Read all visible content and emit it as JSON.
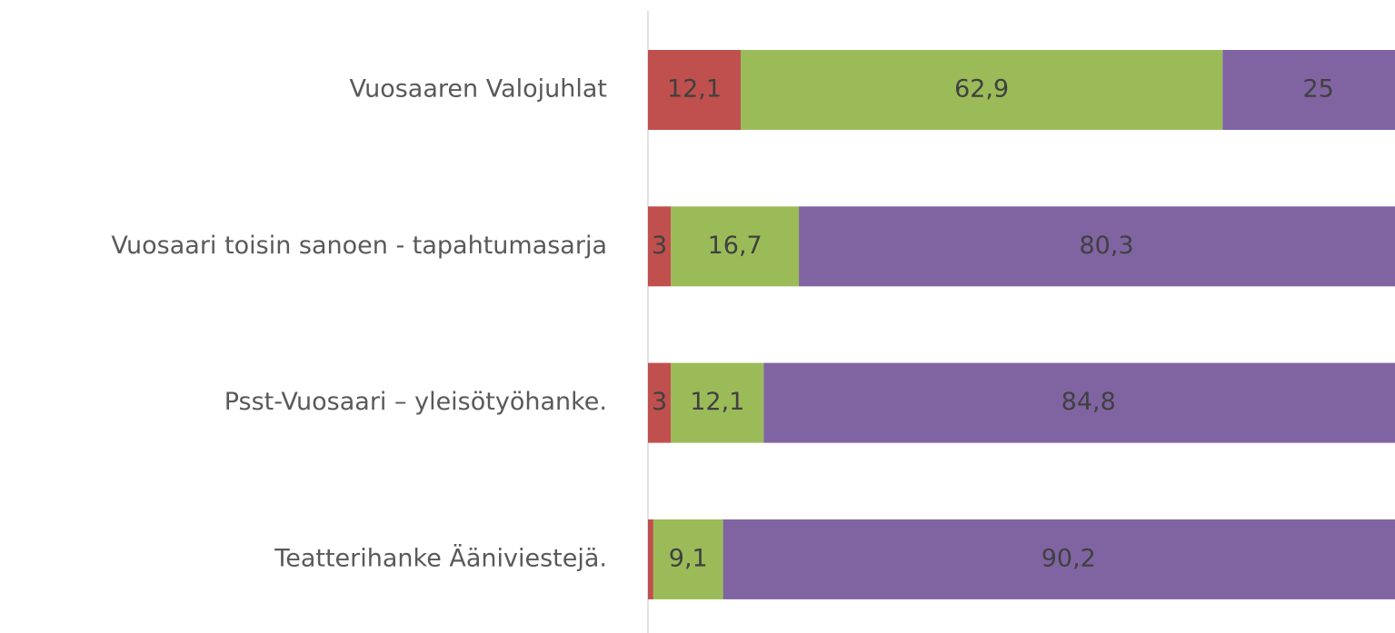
{
  "chart_data": {
    "type": "stacked-bar-horizontal",
    "categories": [
      "Vuosaaren Valojuhlat",
      "Vuosaari toisin sanoen - tapahtumasarja",
      "Psst-Vuosaari – yleisötyöhanke.",
      "Teatterihanke Ääniviestejä."
    ],
    "series": [
      {
        "color": "#c0504d",
        "values": [
          12.1,
          3,
          3,
          0.7
        ],
        "value_labels": [
          "12,1",
          "3",
          "3",
          null
        ]
      },
      {
        "color": "#9bbb59",
        "values": [
          62.9,
          16.7,
          12.1,
          9.1
        ],
        "value_labels": [
          "62,9",
          "16,7",
          "12,1",
          "9,1"
        ]
      },
      {
        "color": "#8064a2",
        "values": [
          25,
          80.3,
          84.8,
          90.2
        ],
        "value_labels": [
          "25",
          "80,3",
          "84,8",
          "90,2"
        ]
      }
    ],
    "xlim": [
      0,
      100
    ]
  }
}
